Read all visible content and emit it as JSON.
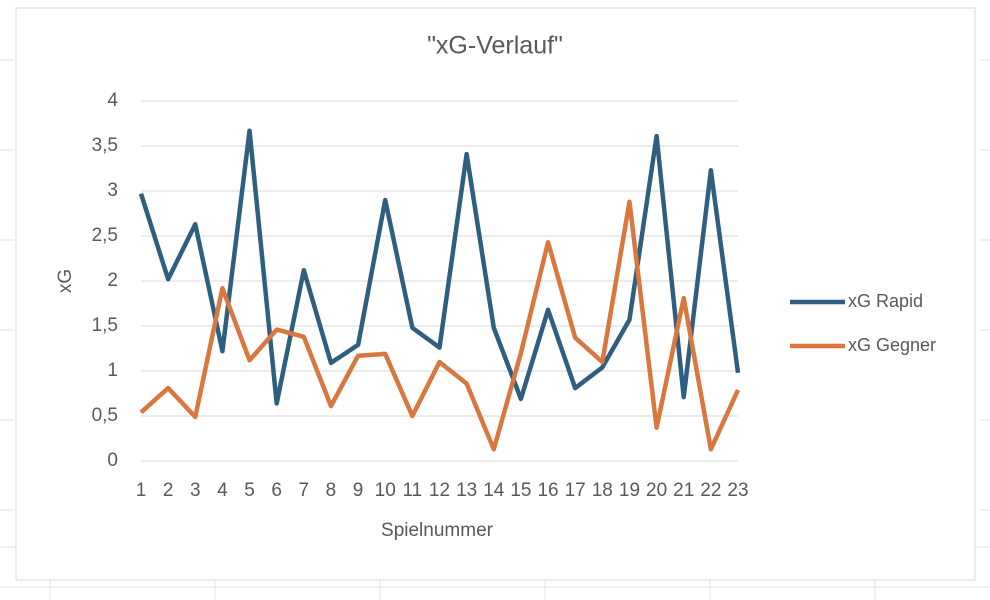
{
  "chart_data": {
    "type": "line",
    "title": "\"xG-Verlauf\"",
    "x_label": "Spielnummer",
    "y_label": "xG",
    "categories": [
      "1",
      "2",
      "3",
      "4",
      "5",
      "6",
      "7",
      "8",
      "9",
      "10",
      "11",
      "12",
      "13",
      "14",
      "15",
      "16",
      "17",
      "18",
      "19",
      "20",
      "21",
      "22",
      "23"
    ],
    "series": [
      {
        "name": "xG Rapid",
        "color": "#2f5f80",
        "values": [
          2.97,
          2.02,
          2.63,
          1.22,
          3.67,
          0.64,
          2.12,
          1.09,
          1.29,
          2.9,
          1.48,
          1.26,
          3.41,
          1.48,
          0.69,
          1.68,
          0.81,
          1.04,
          1.57,
          3.61,
          0.71,
          3.23,
          0.98
        ]
      },
      {
        "name": "xG Gegner",
        "color": "#d9773f",
        "values": [
          0.54,
          0.81,
          0.49,
          1.92,
          1.12,
          1.46,
          1.38,
          0.61,
          1.17,
          1.19,
          0.5,
          1.1,
          0.86,
          0.13,
          1.2,
          2.43,
          1.37,
          1.1,
          2.88,
          0.37,
          1.81,
          0.13,
          0.79
        ]
      }
    ],
    "ylim": [
      0,
      4
    ],
    "yticks": [
      0,
      {
        "value": 0.5,
        "label": "0,5"
      },
      1,
      {
        "value": 1.5,
        "label": "1,5"
      },
      2,
      {
        "value": 2.5,
        "label": "2,5"
      },
      3,
      {
        "value": 3.5,
        "label": "3,5"
      },
      4
    ],
    "grid": true,
    "legend": "right"
  }
}
